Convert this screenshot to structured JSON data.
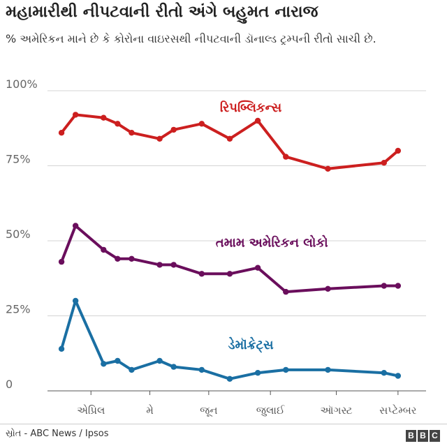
{
  "header": {
    "title": "મહામારીથી નીપટવાની રીતો અંગે બહુમત નારાજ",
    "subtitle": "%  અમેરિકન માને છે કે કોરોના વાઇરસથી નીપટવાની ડૉનાલ્ડ ટ્રમ્પની રીતો સાચી છે."
  },
  "footer": {
    "source": "સ્રોત - ABC News / Ipsos",
    "logo": [
      "B",
      "B",
      "C"
    ]
  },
  "chart_data": {
    "type": "line",
    "title": "મહામારીથી નીપટવાની રીતો અંગે બહુમત નારાજ",
    "ylim": [
      0,
      100
    ],
    "grid": true,
    "yticks": [
      {
        "value": 0,
        "label": "0"
      },
      {
        "value": 25,
        "label": "25%"
      },
      {
        "value": 50,
        "label": "50%"
      },
      {
        "value": 75,
        "label": "75%"
      },
      {
        "value": 100,
        "label": "100%"
      }
    ],
    "xlim": [
      0,
      27
    ],
    "xticks": [
      {
        "pos": 3.1,
        "label": "એપ્રિલ"
      },
      {
        "pos": 7.3,
        "label": "મે"
      },
      {
        "pos": 11.5,
        "label": "જૂન"
      },
      {
        "pos": 15.9,
        "label": "જુલાઈ"
      },
      {
        "pos": 20.6,
        "label": "ઑગસ્ટ"
      },
      {
        "pos": 25.0,
        "label": "સપ્ટેમ્બર"
      }
    ],
    "x": [
      1,
      2,
      4,
      5,
      6,
      8,
      9,
      11,
      13,
      15,
      17,
      20,
      24,
      25
    ],
    "series": [
      {
        "name": "રિપબ્લિકન્સ",
        "color": "#cc1f1f",
        "label_anchor": [
          14.5,
          93
        ],
        "x": [
          1,
          2,
          4,
          5,
          6,
          8,
          9,
          11,
          13,
          15,
          17,
          20,
          24,
          25
        ],
        "values": [
          86,
          92,
          91,
          89,
          86,
          84,
          87,
          89,
          84,
          90,
          78,
          74,
          76,
          80
        ]
      },
      {
        "name": "તમામ અમેરિકન લોકો",
        "color": "#6a0e5c",
        "label_anchor": [
          16,
          48
        ],
        "x": [
          1,
          2,
          4,
          5,
          6,
          8,
          9,
          11,
          13,
          15,
          17,
          20,
          24,
          25
        ],
        "values": [
          43,
          55,
          47,
          44,
          44,
          42,
          42,
          39,
          39,
          41,
          33,
          34,
          35,
          35
        ]
      },
      {
        "name": "ડેમૉક્રેટ્સ",
        "color": "#1a6fa3",
        "label_anchor": [
          14.5,
          14
        ],
        "x": [
          1,
          2,
          4,
          5,
          6,
          8,
          9,
          11,
          13,
          15,
          17,
          20,
          24,
          25
        ],
        "values": [
          14,
          30,
          9,
          10,
          7,
          10,
          8,
          7,
          4,
          6,
          7,
          7,
          6,
          5
        ]
      }
    ]
  }
}
